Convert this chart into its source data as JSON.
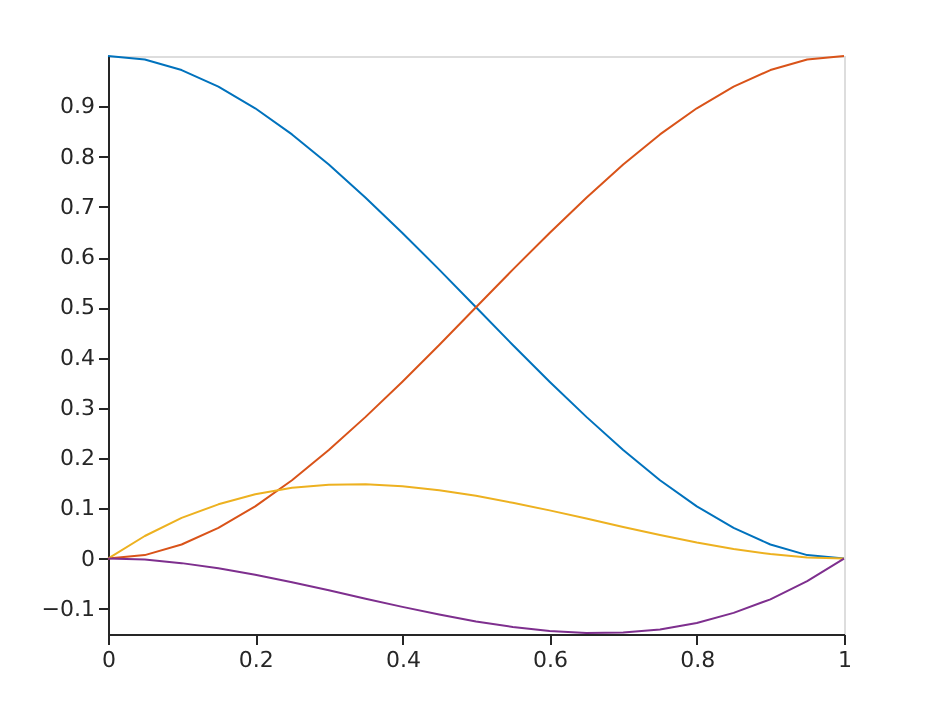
{
  "chart_data": {
    "type": "line",
    "x": [
      0,
      0.05,
      0.1,
      0.15,
      0.2,
      0.25,
      0.3,
      0.35,
      0.4,
      0.45,
      0.5,
      0.55,
      0.6,
      0.65,
      0.7,
      0.75,
      0.8,
      0.85,
      0.9,
      0.95,
      1
    ],
    "series": [
      {
        "color": "#0072bd",
        "values": [
          1,
          0.993,
          0.972,
          0.939,
          0.896,
          0.844,
          0.784,
          0.718,
          0.648,
          0.575,
          0.5,
          0.425,
          0.352,
          0.282,
          0.216,
          0.156,
          0.104,
          0.061,
          0.028,
          0.007,
          0
        ]
      },
      {
        "color": "#d95319",
        "values": [
          0,
          0.007,
          0.028,
          0.061,
          0.104,
          0.156,
          0.216,
          0.282,
          0.352,
          0.425,
          0.5,
          0.575,
          0.648,
          0.718,
          0.784,
          0.844,
          0.896,
          0.939,
          0.972,
          0.993,
          1
        ]
      },
      {
        "color": "#edb120",
        "values": [
          0,
          0.045,
          0.081,
          0.108,
          0.128,
          0.141,
          0.147,
          0.148,
          0.144,
          0.136,
          0.125,
          0.111,
          0.096,
          0.08,
          0.063,
          0.047,
          0.032,
          0.019,
          0.009,
          0.002,
          0
        ]
      },
      {
        "color": "#7e2f8e",
        "values": [
          0,
          -0.002,
          -0.009,
          -0.019,
          -0.032,
          -0.047,
          -0.063,
          -0.08,
          -0.096,
          -0.111,
          -0.125,
          -0.136,
          -0.144,
          -0.148,
          -0.147,
          -0.141,
          -0.128,
          -0.108,
          -0.081,
          -0.045,
          0
        ]
      }
    ],
    "xlim": [
      0,
      1
    ],
    "ylim": [
      -0.15,
      1
    ],
    "xticks": [
      0,
      0.2,
      0.4,
      0.6,
      0.8,
      1
    ],
    "yticks": [
      -0.1,
      0,
      0.1,
      0.2,
      0.3,
      0.4,
      0.5,
      0.6,
      0.7,
      0.8,
      0.9
    ],
    "grid": false,
    "legend": false,
    "marker": "none",
    "line_style": "solid"
  }
}
